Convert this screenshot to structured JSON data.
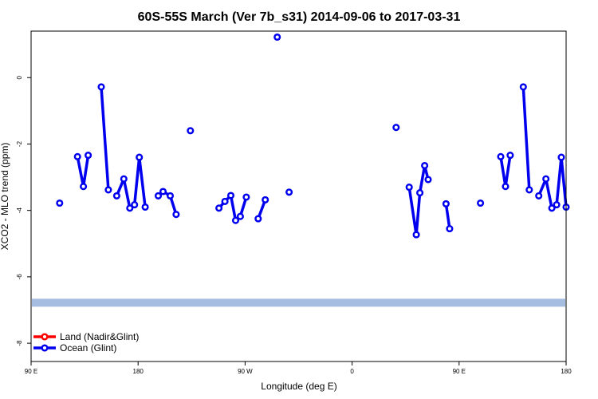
{
  "chart_data": {
    "type": "line",
    "title": "60S-55S March (Ver 7b_s31)   2014-09-06 to 2017-03-31",
    "xlabel": "Longitude (deg E)",
    "ylabel": "XCO2 - MLO trend (ppm)",
    "xlim": [
      90,
      540
    ],
    "ylim": [
      -8.55,
      1.4
    ],
    "x_ticks": [
      {
        "value": 90,
        "label": "90 E"
      },
      {
        "value": 180,
        "label": "180"
      },
      {
        "value": 270,
        "label": "90 W"
      },
      {
        "value": 360,
        "label": "0"
      },
      {
        "value": 450,
        "label": "90 E"
      },
      {
        "value": 540,
        "label": "180"
      }
    ],
    "y_ticks": [
      {
        "value": 0,
        "label": "0"
      },
      {
        "value": -2,
        "label": "-2"
      },
      {
        "value": -4,
        "label": "-4"
      },
      {
        "value": -6,
        "label": "-6"
      },
      {
        "value": -8,
        "label": "-8"
      }
    ],
    "band": {
      "y": -6.78,
      "color": "#a5bde0"
    },
    "series": [
      {
        "name": "Land (Nadir&Glint)",
        "color": "#ff0000",
        "segments": []
      },
      {
        "name": "Ocean (Glint)",
        "color": "#0000ee",
        "segments": [
          [
            [
              114,
              -3.78
            ]
          ],
          [
            [
              129,
              -2.38
            ],
            [
              134,
              -3.28
            ],
            [
              138,
              -2.34
            ]
          ],
          [
            [
              149,
              -0.28
            ],
            [
              155,
              -3.38
            ]
          ],
          [
            [
              162,
              -3.56
            ],
            [
              168,
              -3.05
            ],
            [
              173,
              -3.93
            ],
            [
              177,
              -3.83
            ],
            [
              181,
              -2.4
            ],
            [
              186,
              -3.9
            ]
          ],
          [
            [
              197,
              -3.56
            ],
            [
              201,
              -3.43
            ],
            [
              207,
              -3.56
            ],
            [
              212,
              -4.12
            ]
          ],
          [
            [
              224,
              -1.6
            ]
          ],
          [
            [
              248,
              -3.93
            ],
            [
              253,
              -3.73
            ],
            [
              258,
              -3.55
            ],
            [
              262,
              -4.3
            ],
            [
              266,
              -4.18
            ],
            [
              271,
              -3.6
            ]
          ],
          [
            [
              281,
              -4.25
            ],
            [
              287,
              -3.68
            ]
          ],
          [
            [
              297,
              1.22
            ]
          ],
          [
            [
              307,
              -3.45
            ]
          ],
          [
            [
              397,
              -1.5
            ]
          ],
          [
            [
              408,
              -3.3
            ],
            [
              414,
              -4.73
            ],
            [
              417,
              -3.47
            ],
            [
              421,
              -2.65
            ],
            [
              424,
              -3.07
            ]
          ],
          [
            [
              439,
              -3.8
            ],
            [
              442,
              -4.55
            ]
          ],
          [
            [
              468,
              -3.78
            ]
          ],
          [
            [
              485,
              -2.38
            ],
            [
              489,
              -3.28
            ],
            [
              493,
              -2.34
            ]
          ],
          [
            [
              504,
              -0.28
            ],
            [
              509,
              -3.38
            ]
          ],
          [
            [
              517,
              -3.56
            ],
            [
              523,
              -3.05
            ],
            [
              528,
              -3.93
            ],
            [
              532,
              -3.83
            ],
            [
              536,
              -2.4
            ],
            [
              540,
              -3.9
            ]
          ]
        ]
      }
    ],
    "legend_position": "bottom-left"
  }
}
